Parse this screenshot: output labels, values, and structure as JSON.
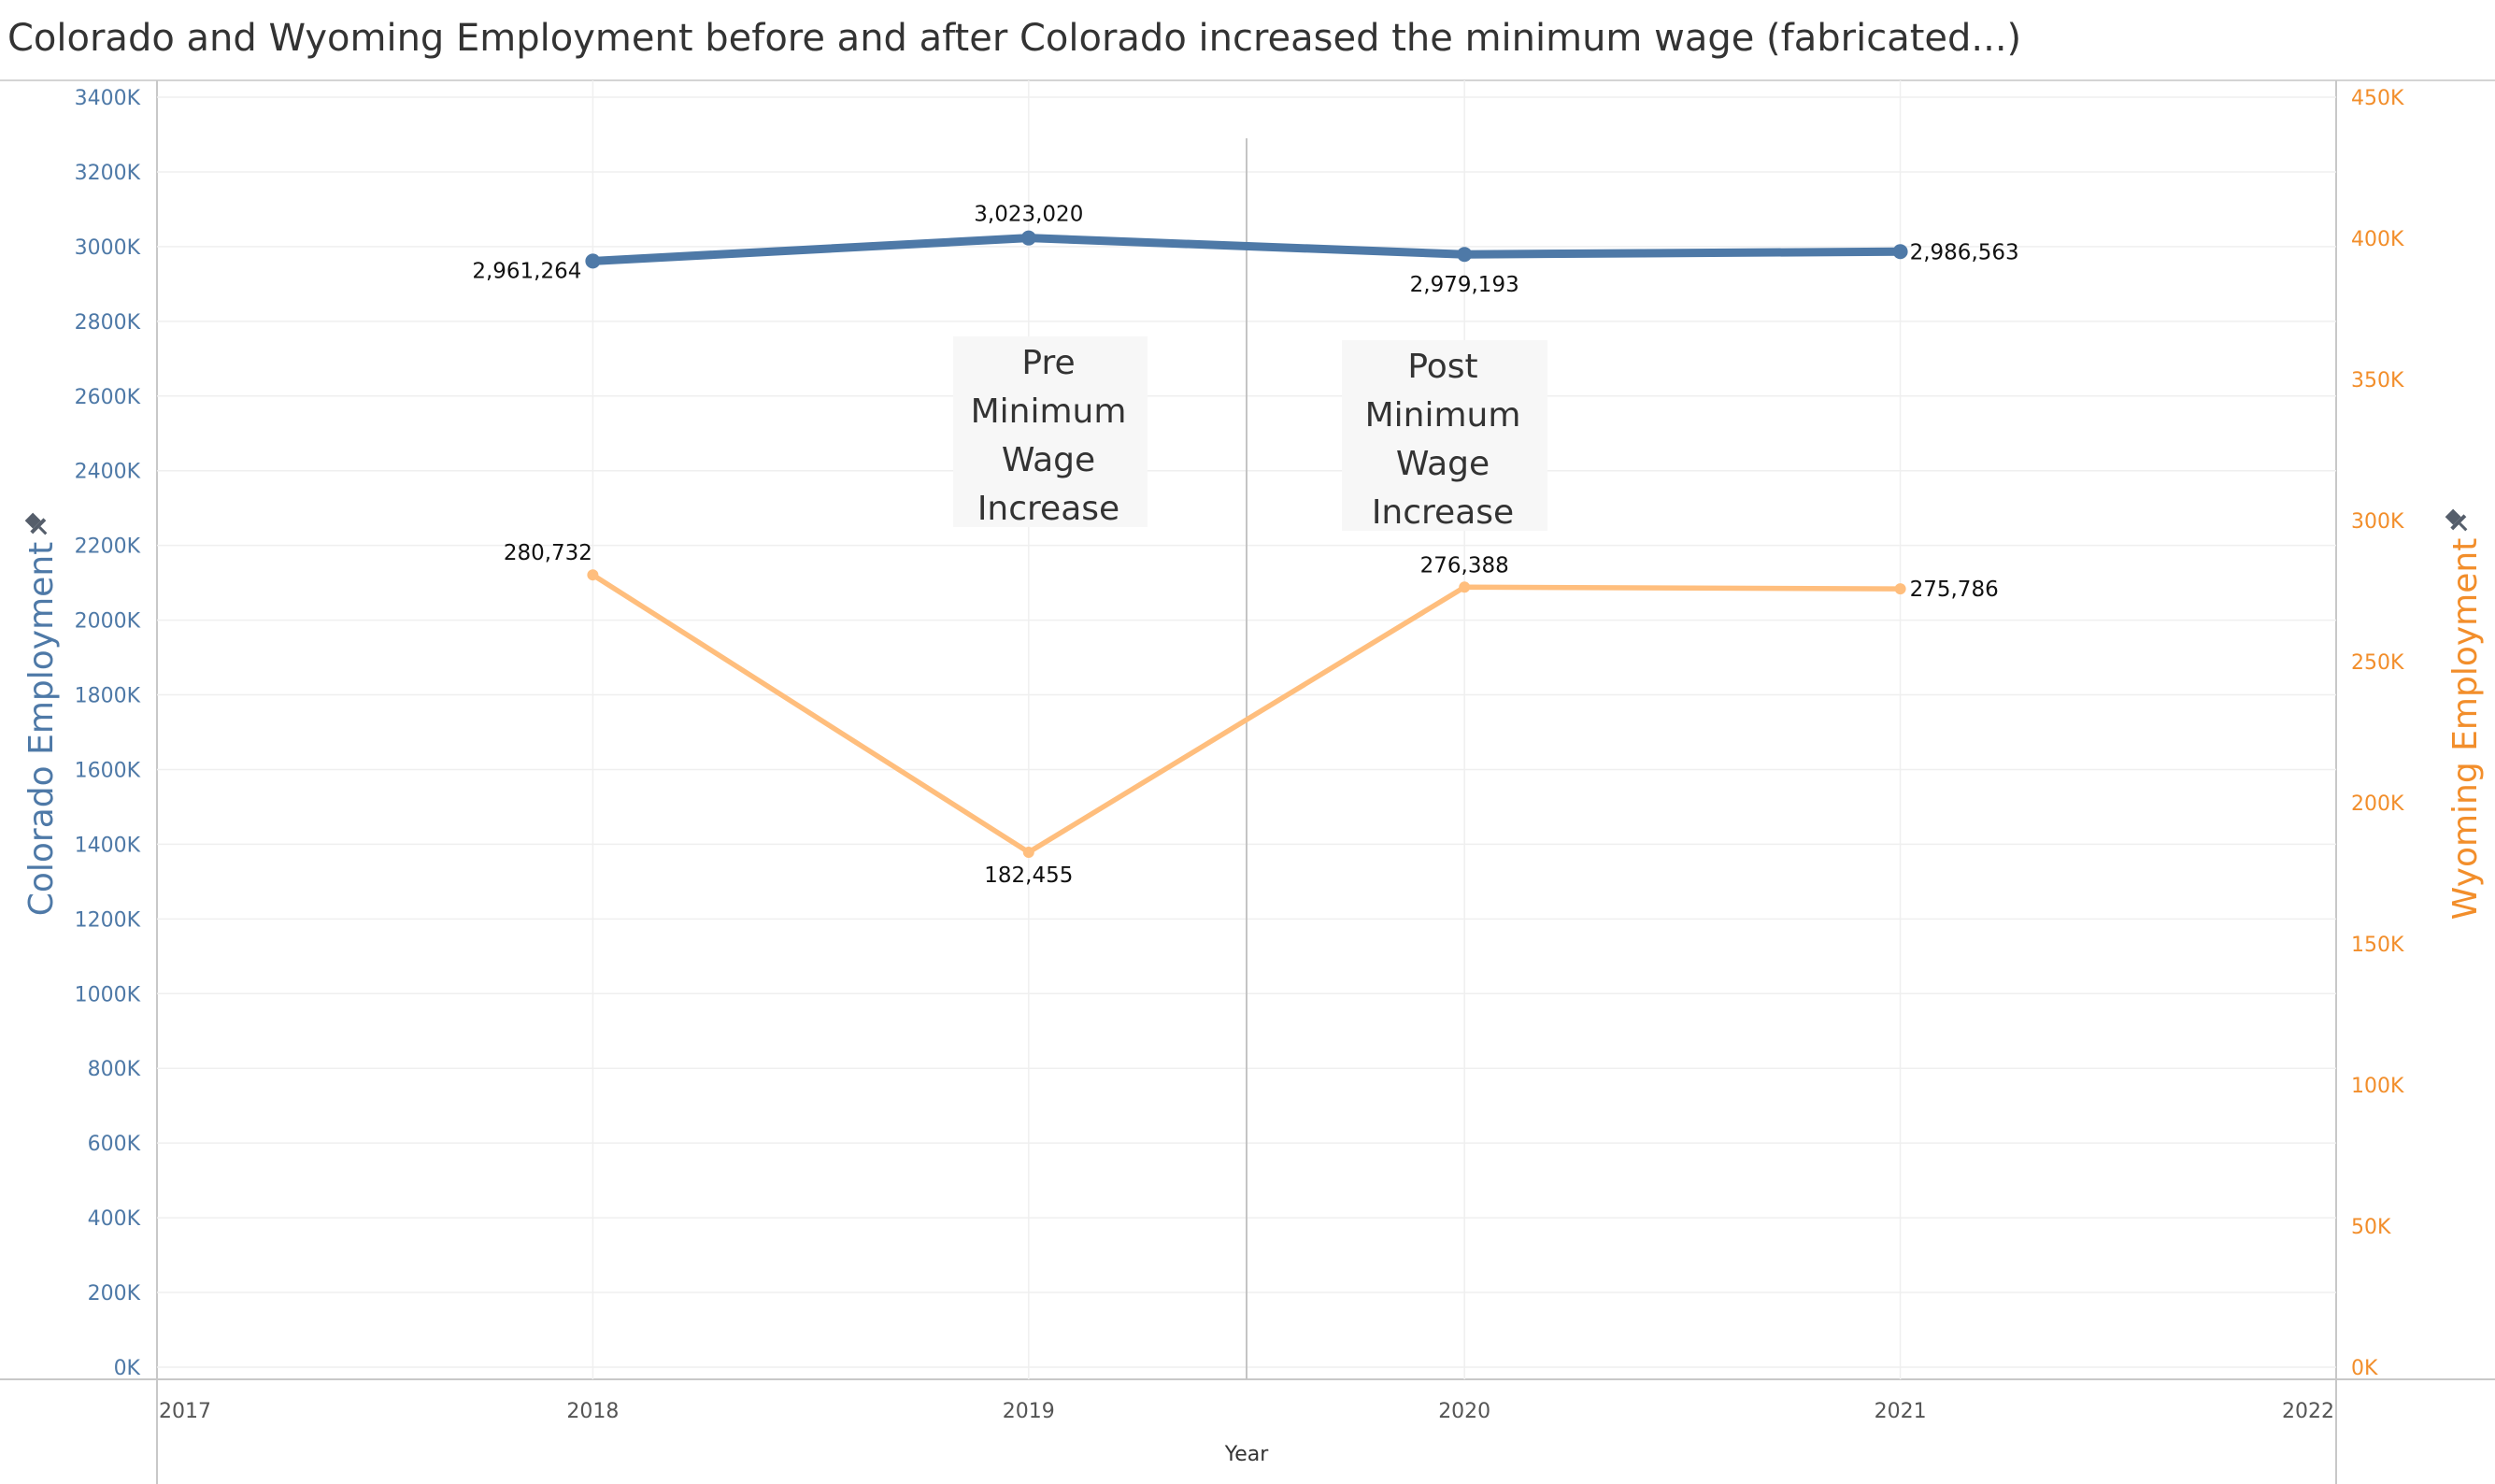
{
  "chart_data": {
    "type": "line",
    "title": "Colorado and Wyoming Employment before and after Colorado increased the minimum wage (fabricated...)",
    "xlabel": "Year",
    "ylabel_left": "Colorado Employment",
    "ylabel_right": "Wyoming Employment",
    "x_ticks": [
      "2017",
      "2018",
      "2019",
      "2020",
      "2021",
      "2022"
    ],
    "xlim": [
      2017,
      2022
    ],
    "ylim_left": [
      0,
      3400000
    ],
    "ylim_right": [
      0,
      450000
    ],
    "left_ticks": [
      "0K",
      "200K",
      "400K",
      "600K",
      "800K",
      "1000K",
      "1200K",
      "1400K",
      "1600K",
      "1800K",
      "2000K",
      "2200K",
      "2400K",
      "2600K",
      "2800K",
      "3000K",
      "3200K",
      "3400K"
    ],
    "right_ticks": [
      "0K",
      "50K",
      "100K",
      "150K",
      "200K",
      "250K",
      "300K",
      "350K",
      "400K",
      "450K"
    ],
    "grid": true,
    "reference_line_x": 2019.5,
    "series": [
      {
        "name": "Colorado Employment",
        "axis": "left",
        "color": "#4e79a7",
        "x": [
          2018,
          2019,
          2020,
          2021
        ],
        "values": [
          2961264,
          3023020,
          2979193,
          2986563
        ],
        "labels": [
          "2,961,264",
          "3,023,020",
          "2,979,193",
          "2,986,563"
        ]
      },
      {
        "name": "Wyoming Employment",
        "axis": "right",
        "color": "#ffbe7d",
        "x": [
          2018,
          2019,
          2020,
          2021
        ],
        "values": [
          280732,
          182455,
          276388,
          275786
        ],
        "labels": [
          "280,732",
          "182,455",
          "276,388",
          "275,786"
        ]
      }
    ],
    "annotations": [
      {
        "lines": [
          "Pre",
          "Minimum",
          "Wage",
          "Increase"
        ]
      },
      {
        "lines": [
          "Post",
          "Minimum",
          "Wage",
          "Increase"
        ]
      }
    ]
  }
}
